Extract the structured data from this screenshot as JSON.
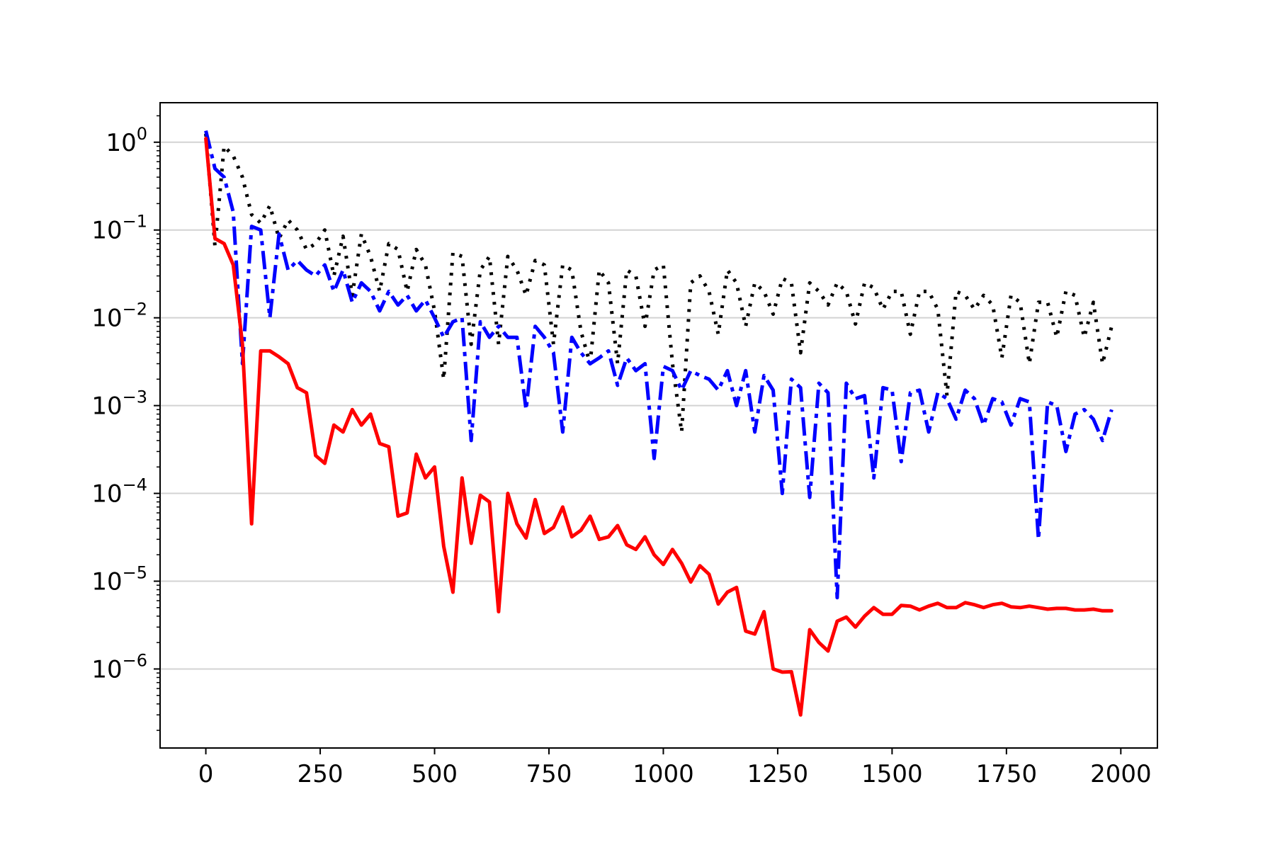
{
  "chart_data": {
    "type": "line",
    "title": "",
    "xlabel": "",
    "ylabel": "",
    "xlim": [
      -100,
      2080
    ],
    "ylim_log10": [
      -6.9,
      0.45
    ],
    "y_scale": "log",
    "grid": "horizontal",
    "x_ticks": [
      0,
      250,
      500,
      750,
      1000,
      1250,
      1500,
      1750,
      2000
    ],
    "x_tick_labels": [
      "0",
      "250",
      "500",
      "750",
      "1000",
      "1250",
      "1500",
      "1750",
      "2000"
    ],
    "y_ticks_exp": [
      0,
      -1,
      -2,
      -3,
      -4,
      -5,
      -6
    ],
    "y_tick_base": "10",
    "y_tick_exp_labels": [
      "0",
      "−1",
      "−2",
      "−3",
      "−4",
      "−5",
      "−6"
    ],
    "series": [
      {
        "color": "#000000",
        "style": "dotted",
        "x": [
          0,
          20,
          40,
          60,
          80,
          100,
          120,
          140,
          160,
          180,
          200,
          220,
          240,
          260,
          280,
          300,
          320,
          340,
          360,
          380,
          400,
          420,
          440,
          460,
          480,
          500,
          520,
          540,
          560,
          580,
          600,
          620,
          640,
          660,
          680,
          700,
          720,
          740,
          760,
          780,
          800,
          820,
          840,
          860,
          880,
          900,
          920,
          940,
          960,
          980,
          1000,
          1020,
          1040,
          1060,
          1080,
          1100,
          1120,
          1140,
          1160,
          1180,
          1200,
          1220,
          1240,
          1260,
          1280,
          1300,
          1320,
          1340,
          1360,
          1380,
          1400,
          1420,
          1440,
          1460,
          1480,
          1500,
          1520,
          1540,
          1560,
          1580,
          1600,
          1620,
          1640,
          1660,
          1680,
          1700,
          1720,
          1740,
          1760,
          1780,
          1800,
          1820,
          1840,
          1860,
          1880,
          1900,
          1920,
          1940,
          1960,
          1980
        ],
        "y": [
          1.25,
          0.065,
          0.9,
          0.7,
          0.4,
          0.15,
          0.12,
          0.19,
          0.08,
          0.13,
          0.1,
          0.06,
          0.07,
          0.1,
          0.03,
          0.085,
          0.018,
          0.09,
          0.05,
          0.02,
          0.07,
          0.06,
          0.02,
          0.06,
          0.04,
          0.012,
          0.002,
          0.055,
          0.05,
          0.005,
          0.035,
          0.05,
          0.005,
          0.05,
          0.035,
          0.018,
          0.045,
          0.04,
          0.005,
          0.04,
          0.035,
          0.007,
          0.003,
          0.035,
          0.025,
          0.003,
          0.035,
          0.03,
          0.008,
          0.035,
          0.04,
          0.003,
          0.0005,
          0.025,
          0.03,
          0.02,
          0.0065,
          0.035,
          0.025,
          0.008,
          0.025,
          0.02,
          0.011,
          0.028,
          0.025,
          0.004,
          0.025,
          0.02,
          0.014,
          0.025,
          0.02,
          0.0085,
          0.025,
          0.022,
          0.0125,
          0.02,
          0.02,
          0.0065,
          0.02,
          0.02,
          0.0125,
          0.0013,
          0.02,
          0.018,
          0.0125,
          0.018,
          0.014,
          0.0035,
          0.018,
          0.015,
          0.003,
          0.015,
          0.015,
          0.006,
          0.02,
          0.018,
          0.006,
          0.015,
          0.003,
          0.008
        ]
      },
      {
        "color": "#0000ff",
        "style": "dashdot",
        "x": [
          0,
          20,
          40,
          60,
          80,
          100,
          120,
          140,
          160,
          180,
          200,
          220,
          240,
          260,
          280,
          300,
          320,
          340,
          360,
          380,
          400,
          420,
          440,
          460,
          480,
          500,
          520,
          540,
          560,
          580,
          600,
          620,
          640,
          660,
          680,
          700,
          720,
          740,
          760,
          780,
          800,
          820,
          840,
          860,
          880,
          900,
          920,
          940,
          960,
          980,
          1000,
          1020,
          1040,
          1060,
          1080,
          1100,
          1120,
          1140,
          1160,
          1180,
          1200,
          1220,
          1240,
          1260,
          1280,
          1300,
          1320,
          1340,
          1360,
          1380,
          1400,
          1420,
          1440,
          1460,
          1480,
          1500,
          1520,
          1540,
          1560,
          1580,
          1600,
          1620,
          1640,
          1660,
          1680,
          1700,
          1720,
          1740,
          1760,
          1780,
          1800,
          1820,
          1840,
          1860,
          1880,
          1900,
          1920,
          1940,
          1960,
          1980
        ],
        "y": [
          1.35,
          0.5,
          0.4,
          0.16,
          0.003,
          0.11,
          0.1,
          0.01,
          0.09,
          0.035,
          0.045,
          0.035,
          0.03,
          0.04,
          0.02,
          0.035,
          0.015,
          0.025,
          0.02,
          0.012,
          0.02,
          0.014,
          0.018,
          0.012,
          0.016,
          0.01,
          0.006,
          0.009,
          0.01,
          0.0004,
          0.009,
          0.006,
          0.008,
          0.006,
          0.006,
          0.0009,
          0.008,
          0.006,
          0.004,
          0.0005,
          0.006,
          0.004,
          0.003,
          0.0035,
          0.0042,
          0.0017,
          0.0035,
          0.0025,
          0.003,
          0.00025,
          0.0028,
          0.0025,
          0.0015,
          0.0025,
          0.0022,
          0.002,
          0.0015,
          0.0025,
          0.001,
          0.0025,
          0.0005,
          0.0022,
          0.0015,
          0.0001,
          0.002,
          0.0016,
          9e-05,
          0.0018,
          0.0014,
          6.5e-06,
          0.0018,
          0.0012,
          0.0013,
          0.00015,
          0.0016,
          0.0015,
          0.00023,
          0.0014,
          0.0015,
          0.0005,
          0.0014,
          0.0012,
          0.0007,
          0.0015,
          0.0012,
          0.0006,
          0.0012,
          0.0011,
          0.0006,
          0.0012,
          0.0011,
          3e-05,
          0.0011,
          0.001,
          0.0003,
          0.0008,
          0.0009,
          0.0007,
          0.0004,
          0.0009
        ]
      },
      {
        "color": "#ff0000",
        "style": "solid",
        "x": [
          0,
          20,
          40,
          60,
          80,
          100,
          120,
          140,
          160,
          180,
          200,
          220,
          240,
          260,
          280,
          300,
          320,
          340,
          360,
          380,
          400,
          420,
          440,
          460,
          480,
          500,
          520,
          540,
          560,
          580,
          600,
          620,
          640,
          660,
          680,
          700,
          720,
          740,
          760,
          780,
          800,
          820,
          840,
          860,
          880,
          900,
          920,
          940,
          960,
          980,
          1000,
          1020,
          1040,
          1060,
          1080,
          1100,
          1120,
          1140,
          1160,
          1180,
          1200,
          1220,
          1240,
          1260,
          1280,
          1300,
          1320,
          1340,
          1360,
          1380,
          1400,
          1420,
          1440,
          1460,
          1480,
          1500,
          1520,
          1540,
          1560,
          1580,
          1600,
          1620,
          1640,
          1660,
          1680,
          1700,
          1720,
          1740,
          1760,
          1780,
          1800,
          1820,
          1840,
          1860,
          1880,
          1900,
          1920,
          1940,
          1960,
          1980
        ],
        "y": [
          1.1,
          0.08,
          0.07,
          0.04,
          0.005,
          4.5e-05,
          0.0042,
          0.0042,
          0.0036,
          0.003,
          0.0016,
          0.0014,
          0.00027,
          0.00022,
          0.0006,
          0.0005,
          0.0009,
          0.0006,
          0.0008,
          0.00037,
          0.00034,
          5.5e-05,
          6e-05,
          0.00028,
          0.00015,
          0.0002,
          2.5e-05,
          7.5e-06,
          0.00015,
          2.7e-05,
          9.5e-05,
          8e-05,
          4.5e-06,
          0.0001,
          4.5e-05,
          3.1e-05,
          8.5e-05,
          3.5e-05,
          4.1e-05,
          7e-05,
          3.2e-05,
          3.8e-05,
          5.5e-05,
          3e-05,
          3.2e-05,
          4.3e-05,
          2.6e-05,
          2.3e-05,
          3.2e-05,
          2e-05,
          1.55e-05,
          2.3e-05,
          1.6e-05,
          9.8e-06,
          1.5e-05,
          1.2e-05,
          5.5e-06,
          7.5e-06,
          8.5e-06,
          2.7e-06,
          2.5e-06,
          4.5e-06,
          1e-06,
          9.2e-07,
          9.3e-07,
          3e-07,
          2.8e-06,
          2e-06,
          1.6e-06,
          3.5e-06,
          3.9e-06,
          3e-06,
          4e-06,
          5e-06,
          4.2e-06,
          4.2e-06,
          5.3e-06,
          5.2e-06,
          4.7e-06,
          5.2e-06,
          5.6e-06,
          5e-06,
          5e-06,
          5.7e-06,
          5.4e-06,
          5e-06,
          5.4e-06,
          5.6e-06,
          5.1e-06,
          5e-06,
          5.2e-06,
          5e-06,
          4.8e-06,
          4.9e-06,
          4.9e-06,
          4.7e-06,
          4.7e-06,
          4.8e-06,
          4.6e-06,
          4.6e-06
        ]
      }
    ]
  }
}
